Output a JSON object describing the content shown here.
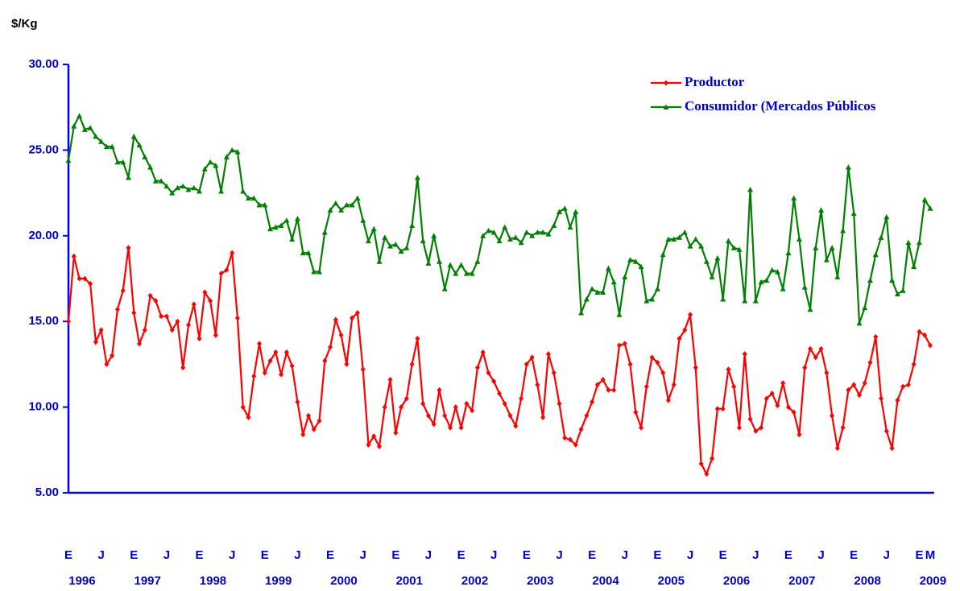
{
  "chart_data": {
    "type": "line",
    "y_label": "$/Kg",
    "categories": [
      "E",
      null,
      null,
      null,
      null,
      null,
      "J",
      null,
      null,
      null,
      null,
      null,
      "E",
      null,
      null,
      null,
      null,
      null,
      "J",
      null,
      null,
      null,
      null,
      null,
      "E",
      null,
      null,
      null,
      null,
      null,
      "J",
      null,
      null,
      null,
      null,
      null,
      "E",
      null,
      null,
      null,
      null,
      null,
      "J",
      null,
      null,
      null,
      null,
      null,
      "E",
      null,
      null,
      null,
      null,
      null,
      "J",
      null,
      null,
      null,
      null,
      null,
      "E",
      null,
      null,
      null,
      null,
      null,
      "J",
      null,
      null,
      null,
      null,
      null,
      "E",
      null,
      null,
      null,
      null,
      null,
      "J",
      null,
      null,
      null,
      null,
      null,
      "E",
      null,
      null,
      null,
      null,
      null,
      "J",
      null,
      null,
      null,
      null,
      null,
      "E",
      null,
      null,
      null,
      null,
      null,
      "J",
      null,
      null,
      null,
      null,
      null,
      "E",
      null,
      null,
      null,
      null,
      null,
      "J",
      null,
      null,
      null,
      null,
      null,
      "E",
      null,
      null,
      null,
      null,
      null,
      "J",
      null,
      null,
      null,
      null,
      null,
      "E",
      null,
      null,
      null,
      null,
      null,
      "J",
      null,
      null,
      null,
      null,
      null,
      "E",
      null,
      null,
      null,
      null,
      null,
      "J",
      null,
      null,
      null,
      null,
      null,
      "E",
      null,
      "M"
    ],
    "year_labels": [
      "1996",
      "1997",
      "1998",
      "1999",
      "2000",
      "2001",
      "2002",
      "2003",
      "2004",
      "2005",
      "2006",
      "2007",
      "2008",
      "2009"
    ],
    "ylim": [
      5,
      30
    ],
    "yticks": [
      {
        "value": 5,
        "label": "5.00"
      },
      {
        "value": 10,
        "label": "10.00"
      },
      {
        "value": 15,
        "label": "15.00"
      },
      {
        "value": 20,
        "label": "20.00"
      },
      {
        "value": 25,
        "label": "25.00"
      },
      {
        "value": 30,
        "label": "30.00"
      }
    ],
    "legend_position": "upper right",
    "series": [
      {
        "name": "Productor",
        "color": "#ff0000",
        "marker": "diamond",
        "values": [
          15.0,
          18.8,
          17.5,
          17.5,
          17.2,
          13.8,
          14.5,
          12.5,
          13.0,
          15.7,
          16.8,
          19.3,
          15.5,
          13.7,
          14.5,
          16.5,
          16.2,
          15.3,
          15.3,
          14.5,
          15.0,
          12.3,
          14.8,
          16.0,
          14.0,
          16.7,
          16.2,
          14.2,
          17.8,
          18.0,
          19.0,
          15.2,
          10.0,
          9.4,
          11.8,
          13.7,
          12.0,
          12.7,
          13.2,
          11.9,
          13.2,
          12.4,
          10.3,
          8.4,
          9.5,
          8.7,
          9.2,
          12.7,
          13.5,
          15.1,
          14.2,
          12.5,
          15.2,
          15.5,
          12.2,
          7.8,
          8.3,
          7.7,
          10.0,
          11.6,
          8.5,
          10.0,
          10.5,
          12.5,
          14.0,
          10.2,
          9.5,
          9.0,
          11.0,
          9.5,
          8.8,
          10.0,
          8.8,
          10.2,
          9.8,
          12.3,
          13.2,
          12.0,
          11.5,
          10.8,
          10.2,
          9.5,
          8.9,
          10.5,
          12.5,
          12.9,
          11.3,
          9.4,
          13.1,
          12.0,
          10.2,
          8.2,
          8.1,
          7.8,
          8.7,
          9.5,
          10.3,
          11.3,
          11.6,
          11.0,
          11.0,
          13.6,
          13.7,
          12.5,
          9.7,
          8.8,
          11.2,
          12.9,
          12.6,
          12.0,
          10.4,
          11.3,
          14.0,
          14.5,
          15.4,
          12.3,
          6.7,
          6.1,
          7.0,
          9.9,
          9.9,
          12.2,
          11.2,
          8.8,
          13.1,
          9.3,
          8.6,
          8.8,
          10.5,
          10.8,
          10.1,
          11.4,
          10.0,
          9.7,
          8.4,
          12.3,
          13.4,
          12.9,
          13.4,
          12.0,
          9.5,
          7.6,
          8.8,
          11.0,
          11.3,
          10.7,
          11.4,
          12.6,
          14.1,
          10.5,
          8.6,
          7.6,
          10.4,
          11.2,
          11.3,
          12.5,
          14.4,
          14.2,
          13.6
        ]
      },
      {
        "name": "Consumidor (Mercados Públicos",
        "color": "#008000",
        "marker": "triangle",
        "values": [
          24.4,
          26.4,
          27.0,
          26.2,
          26.3,
          25.8,
          25.5,
          25.2,
          25.2,
          24.3,
          24.3,
          23.4,
          25.8,
          25.3,
          24.6,
          24.0,
          23.2,
          23.2,
          22.9,
          22.5,
          22.8,
          22.9,
          22.7,
          22.8,
          22.6,
          23.9,
          24.3,
          24.1,
          22.6,
          24.6,
          25.0,
          24.9,
          22.6,
          22.2,
          22.2,
          21.8,
          21.8,
          20.4,
          20.5,
          20.6,
          20.9,
          19.8,
          21.0,
          19.0,
          19.0,
          17.9,
          17.9,
          20.2,
          21.5,
          21.9,
          21.5,
          21.8,
          21.8,
          22.2,
          20.9,
          19.7,
          20.4,
          18.5,
          19.9,
          19.4,
          19.5,
          19.1,
          19.3,
          20.6,
          23.4,
          19.7,
          18.4,
          20.0,
          18.5,
          16.9,
          18.3,
          17.8,
          18.3,
          17.8,
          17.8,
          18.5,
          20.0,
          20.3,
          20.2,
          19.7,
          20.5,
          19.8,
          19.9,
          19.6,
          20.2,
          20.0,
          20.2,
          20.2,
          20.1,
          20.6,
          21.4,
          21.6,
          20.5,
          21.4,
          15.5,
          16.3,
          16.9,
          16.7,
          16.7,
          18.1,
          17.3,
          15.4,
          17.6,
          18.6,
          18.5,
          18.2,
          16.2,
          16.3,
          16.9,
          18.9,
          19.8,
          19.8,
          19.9,
          20.2,
          19.4,
          19.8,
          19.4,
          18.5,
          17.6,
          18.7,
          16.3,
          19.7,
          19.3,
          19.2,
          16.2,
          22.7,
          16.2,
          17.3,
          17.4,
          18.0,
          17.9,
          16.9,
          19.0,
          22.2,
          19.8,
          17.0,
          15.7,
          19.3,
          21.5,
          18.6,
          19.3,
          17.6,
          20.3,
          24.0,
          21.3,
          14.9,
          15.8,
          17.4,
          18.9,
          19.9,
          21.1,
          17.4,
          16.6,
          16.8,
          19.6,
          18.2,
          19.6,
          22.1,
          21.6
        ]
      }
    ]
  }
}
